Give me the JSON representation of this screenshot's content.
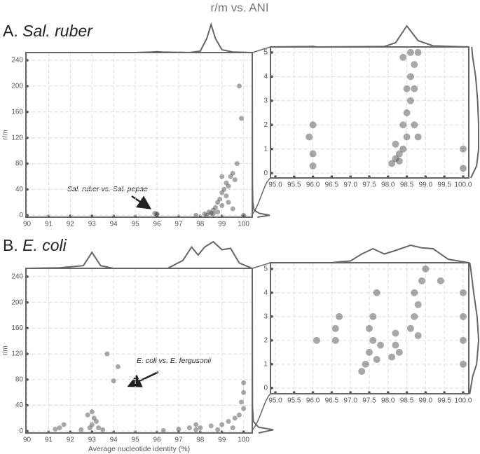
{
  "title": "r/m vs. ANI",
  "panels": [
    {
      "letter": "A.",
      "name": "Sal. ruber",
      "annotation": "Sal. ruber vs. Sal. pepae"
    },
    {
      "letter": "B.",
      "name": "E. coli",
      "annotation": "E. coli vs. E. fergusonii"
    }
  ],
  "chart_data": [
    {
      "type": "scatter",
      "y_label": "r/m",
      "xlim": [
        89.95,
        100.4
      ],
      "ylim": [
        -3,
        252
      ],
      "xticks": [
        90,
        91,
        92,
        93,
        94,
        95,
        96,
        97,
        98,
        99,
        100
      ],
      "yticks": [
        0,
        40,
        80,
        120,
        160,
        200,
        240
      ],
      "x": [
        96,
        96,
        95.9,
        98.2,
        98.4,
        98.5,
        98.6,
        98.7,
        98.8,
        98.9,
        99,
        99.1,
        99.2,
        99.3,
        99.2,
        99,
        98.8,
        99.4,
        99.5,
        99.6,
        99.3,
        99.5,
        98.6,
        98.3,
        97.8,
        99.8,
        99.9,
        99.7,
        100,
        99
      ],
      "values": [
        2,
        1,
        3,
        2,
        5,
        3,
        8,
        12,
        20,
        25,
        35,
        40,
        50,
        45,
        30,
        15,
        5,
        60,
        65,
        55,
        20,
        10,
        2,
        0,
        0,
        200,
        150,
        80,
        0,
        60
      ],
      "color": "#3d3d3d",
      "x_density": {
        "x": [
          89.95,
          95,
          95.8,
          96,
          96.2,
          97.5,
          98,
          98.3,
          98.5,
          98.7,
          99,
          99.5,
          100,
          100.4
        ],
        "values": [
          0,
          0,
          0.02,
          0.03,
          0.02,
          0,
          0.05,
          0.5,
          1,
          0.5,
          0.1,
          0.02,
          0.01,
          0
        ]
      },
      "y_density": {
        "y": [
          -3,
          0,
          3,
          8,
          20,
          50,
          252
        ],
        "values": [
          0.3,
          1,
          0.4,
          0.1,
          0.03,
          0.01,
          0
        ]
      }
    },
    {
      "type": "scatter",
      "xlim": [
        94.87,
        100.15
      ],
      "ylim": [
        -0.2,
        5.23
      ],
      "xticks": [
        {
          "value": 95,
          "label": "95.0"
        },
        {
          "value": 95.5,
          "label": "95.5"
        },
        {
          "value": 96,
          "label": "96.0"
        },
        {
          "value": 96.5,
          "label": "96.5"
        },
        {
          "value": 97,
          "label": "97.0"
        },
        {
          "value": 97.5,
          "label": "97.5"
        },
        {
          "value": 98,
          "label": "98.0"
        },
        {
          "value": 98.5,
          "label": "98.5"
        },
        {
          "value": 99,
          "label": "99.0"
        },
        {
          "value": 99.5,
          "label": "99.5"
        },
        {
          "value": 100,
          "label": "100.0"
        }
      ],
      "yticks": [
        0,
        1,
        2,
        3,
        4,
        5
      ],
      "x": [
        96,
        96,
        95.9,
        96,
        98.1,
        98.2,
        98.3,
        98.4,
        98.2,
        98.5,
        98.4,
        98.5,
        98.6,
        98.5,
        98.6,
        98.7,
        98.6,
        98.3,
        98.7,
        98.8,
        98.7,
        98.8,
        98.4,
        100,
        100
      ],
      "values": [
        0.3,
        0.8,
        1.5,
        2,
        0.4,
        0.6,
        0.8,
        1,
        1.2,
        1.5,
        2,
        2.5,
        3,
        3.5,
        4,
        4.5,
        5,
        0.5,
        2,
        1.5,
        3.5,
        5,
        4.8,
        0.2,
        1
      ],
      "color": "#3d3d3d",
      "x_density": {
        "x": [
          94.87,
          95.9,
          96,
          96.1,
          97.9,
          98.2,
          98.5,
          98.8,
          99.2,
          100.15
        ],
        "values": [
          0,
          0.02,
          0.03,
          0,
          0.02,
          0.2,
          1,
          0.3,
          0.05,
          0
        ]
      },
      "y_density": {
        "y": [
          -0.2,
          0.3,
          1,
          2,
          3,
          4,
          4.8,
          5.23
        ],
        "values": [
          0.2,
          0.8,
          1,
          1,
          0.9,
          0.7,
          0.4,
          0.3
        ]
      }
    },
    {
      "type": "scatter",
      "y_label": "r/m",
      "x_label": "Average nucleotide identity (%)",
      "xlim": [
        89.95,
        100.4
      ],
      "ylim": [
        -3,
        253
      ],
      "xticks": [
        90,
        91,
        92,
        93,
        94,
        95,
        96,
        97,
        98,
        99,
        100
      ],
      "yticks": [
        0,
        40,
        80,
        120,
        160,
        200,
        240
      ],
      "x": [
        91.5,
        91.7,
        91.3,
        92.5,
        92.9,
        93,
        93.1,
        93.2,
        93,
        93.3,
        92.8,
        93.5,
        93.7,
        94,
        94.2,
        96.3,
        97,
        97.5,
        98,
        98.5,
        99,
        99.3,
        99.6,
        99.8,
        100,
        100,
        99.9,
        99.5,
        98.8,
        97.8,
        100,
        97.8
      ],
      "values": [
        5,
        10,
        3,
        2,
        5,
        10,
        20,
        15,
        30,
        5,
        25,
        2,
        120,
        78,
        100,
        1,
        3,
        5,
        5,
        8,
        10,
        15,
        20,
        25,
        35,
        60,
        45,
        5,
        2,
        2,
        75,
        10
      ],
      "color": "#3d3d3d",
      "x_density": {
        "x": [
          89.95,
          91.5,
          92.6,
          93,
          93.4,
          94,
          96.5,
          97.2,
          97.6,
          97.9,
          98.2,
          98.6,
          99,
          99.4,
          99.8,
          100.4
        ],
        "values": [
          0,
          0.02,
          0.1,
          0.6,
          0.1,
          0,
          0,
          0.3,
          0.8,
          0.5,
          0.8,
          1,
          0.7,
          0.75,
          0.2,
          0
        ]
      },
      "y_density": {
        "y": [
          -3,
          2,
          6,
          15,
          40,
          253
        ],
        "values": [
          0.3,
          1,
          0.3,
          0.05,
          0.01,
          0
        ]
      }
    },
    {
      "type": "scatter",
      "xlim": [
        94.87,
        100.15
      ],
      "ylim": [
        -0.24,
        5.26
      ],
      "xticks": [
        {
          "value": 95,
          "label": "95.0"
        },
        {
          "value": 95.5,
          "label": "95.5"
        },
        {
          "value": 96,
          "label": "96.0"
        },
        {
          "value": 96.5,
          "label": "96.5"
        },
        {
          "value": 97,
          "label": "97.0"
        },
        {
          "value": 97.5,
          "label": "97.5"
        },
        {
          "value": 98,
          "label": "98.0"
        },
        {
          "value": 98.5,
          "label": "98.5"
        },
        {
          "value": 99,
          "label": "99.0"
        },
        {
          "value": 99.5,
          "label": "99.5"
        },
        {
          "value": 100,
          "label": "100.0"
        }
      ],
      "yticks": [
        0,
        1,
        2,
        3,
        4,
        5
      ],
      "x": [
        96.6,
        96.7,
        96.6,
        97.4,
        97.5,
        97.6,
        97.5,
        97.7,
        97.6,
        97.7,
        97.8,
        98.1,
        98.2,
        98.2,
        98.3,
        98.6,
        98.7,
        98.8,
        98.7,
        98.9,
        99,
        98.8,
        99.4,
        100,
        100,
        100,
        100,
        97.3,
        96.1
      ],
      "values": [
        2,
        3,
        2.5,
        1,
        1.5,
        2,
        2.5,
        1.2,
        3,
        4,
        1.8,
        1.3,
        1.8,
        2.3,
        1.5,
        2.5,
        3,
        3.5,
        4,
        4.5,
        5,
        2.2,
        4.5,
        1,
        2,
        3,
        4,
        0.7,
        2
      ],
      "color": "#3d3d3d",
      "x_density": {
        "x": [
          94.87,
          96.5,
          96.7,
          97,
          97.3,
          97.6,
          97.9,
          98.2,
          98.6,
          98.9,
          99.2,
          99.6,
          100.15
        ],
        "values": [
          0,
          0,
          0.05,
          0.1,
          0.5,
          0.8,
          0.5,
          0.7,
          1,
          0.85,
          0.8,
          0.2,
          0
        ]
      },
      "y_density": {
        "y": [
          -0.24,
          0.5,
          1,
          2,
          3,
          4,
          5,
          5.26
        ],
        "values": [
          0.1,
          0.4,
          0.8,
          1,
          0.85,
          0.5,
          0.2,
          0.1
        ]
      }
    }
  ]
}
